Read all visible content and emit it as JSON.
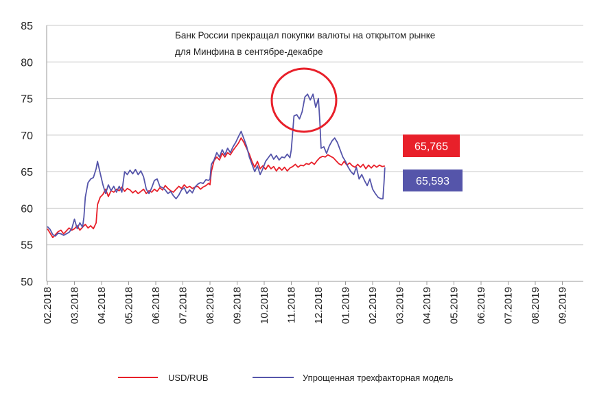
{
  "chart_data": {
    "type": "line",
    "title": "",
    "xlabel": "",
    "ylabel": "",
    "ylim": [
      50,
      85
    ],
    "yticks": [
      50,
      55,
      60,
      65,
      70,
      75,
      80,
      85
    ],
    "xtick_labels": [
      "02.2018",
      "03.2018",
      "04.2018",
      "05.2018",
      "06.2018",
      "07.2018",
      "08.2018",
      "09.2018",
      "10.2018",
      "11.2018",
      "12.2018",
      "01.2019",
      "02.2019",
      "03.2019",
      "04.2019",
      "05.2019",
      "06.2019",
      "07.2019",
      "08.2019",
      "09.2019"
    ],
    "x_unit": "months since 02.2018",
    "grid": "horizontal",
    "legend_position": "bottom",
    "annotation": {
      "line1": "Банк России прекращал покупки валюты на открытом рынке",
      "line2": "для Минфина в сентябре-декабре"
    },
    "end_labels": [
      {
        "text": "65,765",
        "series": "USD/RUB",
        "color": "#e8202a"
      },
      {
        "text": "65,593",
        "series": "Упрощенная трехфакторная модель",
        "color": "#5555aa"
      }
    ],
    "series": [
      {
        "name": "USD/RUB",
        "color": "#e8202a",
        "points": [
          [
            0,
            57.2
          ],
          [
            0.1,
            56.6
          ],
          [
            0.2,
            56.0
          ],
          [
            0.3,
            56.4
          ],
          [
            0.4,
            56.8
          ],
          [
            0.5,
            57.0
          ],
          [
            0.6,
            56.5
          ],
          [
            0.7,
            56.9
          ],
          [
            0.8,
            57.3
          ],
          [
            0.9,
            57.0
          ],
          [
            1.0,
            57.2
          ],
          [
            1.1,
            57.6
          ],
          [
            1.2,
            57.0
          ],
          [
            1.3,
            57.4
          ],
          [
            1.4,
            57.8
          ],
          [
            1.5,
            57.3
          ],
          [
            1.6,
            57.6
          ],
          [
            1.7,
            57.2
          ],
          [
            1.8,
            58.0
          ],
          [
            1.85,
            60.5
          ],
          [
            1.95,
            61.5
          ],
          [
            2.05,
            61.9
          ],
          [
            2.15,
            62.6
          ],
          [
            2.25,
            61.6
          ],
          [
            2.35,
            62.4
          ],
          [
            2.45,
            62.2
          ],
          [
            2.55,
            62.6
          ],
          [
            2.65,
            62.4
          ],
          [
            2.75,
            62.9
          ],
          [
            2.85,
            62.3
          ],
          [
            2.95,
            62.7
          ],
          [
            3.05,
            62.5
          ],
          [
            3.15,
            62.1
          ],
          [
            3.25,
            62.4
          ],
          [
            3.35,
            62.0
          ],
          [
            3.45,
            62.3
          ],
          [
            3.55,
            62.6
          ],
          [
            3.65,
            62.0
          ],
          [
            3.75,
            62.4
          ],
          [
            3.85,
            62.2
          ],
          [
            3.95,
            62.6
          ],
          [
            4.05,
            62.3
          ],
          [
            4.15,
            62.8
          ],
          [
            4.25,
            62.5
          ],
          [
            4.35,
            63.1
          ],
          [
            4.45,
            62.7
          ],
          [
            4.55,
            62.4
          ],
          [
            4.65,
            62.2
          ],
          [
            4.75,
            62.6
          ],
          [
            4.85,
            63.0
          ],
          [
            4.95,
            62.7
          ],
          [
            5.05,
            63.2
          ],
          [
            5.15,
            62.8
          ],
          [
            5.25,
            63.0
          ],
          [
            5.35,
            62.7
          ],
          [
            5.45,
            62.9
          ],
          [
            5.55,
            63.0
          ],
          [
            5.65,
            62.6
          ],
          [
            5.75,
            62.9
          ],
          [
            5.85,
            63.1
          ],
          [
            5.95,
            63.4
          ],
          [
            6.0,
            63.2
          ],
          [
            6.05,
            65.0
          ],
          [
            6.15,
            66.5
          ],
          [
            6.25,
            67.0
          ],
          [
            6.35,
            66.6
          ],
          [
            6.45,
            67.5
          ],
          [
            6.55,
            67.0
          ],
          [
            6.65,
            67.6
          ],
          [
            6.75,
            67.3
          ],
          [
            6.85,
            67.9
          ],
          [
            6.95,
            68.4
          ],
          [
            7.05,
            68.9
          ],
          [
            7.15,
            69.6
          ],
          [
            7.25,
            69.0
          ],
          [
            7.35,
            68.2
          ],
          [
            7.45,
            67.4
          ],
          [
            7.55,
            66.4
          ],
          [
            7.65,
            65.6
          ],
          [
            7.75,
            66.4
          ],
          [
            7.85,
            65.4
          ],
          [
            7.95,
            65.8
          ],
          [
            8.05,
            65.3
          ],
          [
            8.15,
            65.9
          ],
          [
            8.25,
            65.4
          ],
          [
            8.35,
            65.7
          ],
          [
            8.45,
            65.1
          ],
          [
            8.55,
            65.6
          ],
          [
            8.65,
            65.2
          ],
          [
            8.75,
            65.6
          ],
          [
            8.85,
            65.1
          ],
          [
            8.95,
            65.5
          ],
          [
            9.05,
            65.7
          ],
          [
            9.15,
            66.0
          ],
          [
            9.25,
            65.6
          ],
          [
            9.35,
            65.9
          ],
          [
            9.45,
            65.8
          ],
          [
            9.55,
            66.1
          ],
          [
            9.65,
            66.0
          ],
          [
            9.75,
            66.3
          ],
          [
            9.85,
            66.0
          ],
          [
            9.95,
            66.5
          ],
          [
            10.05,
            66.9
          ],
          [
            10.15,
            67.1
          ],
          [
            10.25,
            67.0
          ],
          [
            10.35,
            67.3
          ],
          [
            10.45,
            67.1
          ],
          [
            10.55,
            66.9
          ],
          [
            10.65,
            66.5
          ],
          [
            10.75,
            66.1
          ],
          [
            10.85,
            65.9
          ],
          [
            10.95,
            66.4
          ],
          [
            11.05,
            65.9
          ],
          [
            11.15,
            66.2
          ],
          [
            11.25,
            65.8
          ],
          [
            11.35,
            65.6
          ],
          [
            11.45,
            66.0
          ],
          [
            11.55,
            65.6
          ],
          [
            11.65,
            66.0
          ],
          [
            11.75,
            65.4
          ],
          [
            11.85,
            65.9
          ],
          [
            11.95,
            65.5
          ],
          [
            12.05,
            65.9
          ],
          [
            12.15,
            65.6
          ],
          [
            12.25,
            65.9
          ],
          [
            12.35,
            65.7
          ],
          [
            12.45,
            65.77
          ]
        ]
      },
      {
        "name": "Упрощенная трехфакторная модель",
        "color": "#5555aa",
        "points": [
          [
            0,
            57.5
          ],
          [
            0.1,
            57.1
          ],
          [
            0.2,
            56.4
          ],
          [
            0.3,
            56.2
          ],
          [
            0.4,
            56.6
          ],
          [
            0.5,
            56.5
          ],
          [
            0.6,
            56.3
          ],
          [
            0.7,
            56.5
          ],
          [
            0.8,
            56.7
          ],
          [
            0.9,
            57.2
          ],
          [
            1.0,
            58.5
          ],
          [
            1.1,
            57.2
          ],
          [
            1.2,
            58.0
          ],
          [
            1.3,
            57.4
          ],
          [
            1.35,
            58.8
          ],
          [
            1.4,
            61.5
          ],
          [
            1.5,
            63.5
          ],
          [
            1.6,
            64.0
          ],
          [
            1.7,
            64.2
          ],
          [
            1.8,
            65.4
          ],
          [
            1.85,
            66.4
          ],
          [
            1.95,
            64.8
          ],
          [
            2.05,
            63.2
          ],
          [
            2.15,
            62.0
          ],
          [
            2.25,
            63.2
          ],
          [
            2.35,
            62.4
          ],
          [
            2.45,
            63.0
          ],
          [
            2.55,
            62.2
          ],
          [
            2.65,
            63.0
          ],
          [
            2.75,
            62.2
          ],
          [
            2.85,
            65.0
          ],
          [
            2.95,
            64.6
          ],
          [
            3.05,
            65.2
          ],
          [
            3.15,
            64.7
          ],
          [
            3.25,
            65.3
          ],
          [
            3.35,
            64.6
          ],
          [
            3.45,
            65.1
          ],
          [
            3.55,
            64.3
          ],
          [
            3.65,
            62.6
          ],
          [
            3.75,
            62.0
          ],
          [
            3.85,
            62.8
          ],
          [
            3.95,
            63.8
          ],
          [
            4.05,
            64.0
          ],
          [
            4.15,
            63.0
          ],
          [
            4.25,
            62.8
          ],
          [
            4.35,
            62.5
          ],
          [
            4.45,
            62.0
          ],
          [
            4.55,
            62.3
          ],
          [
            4.65,
            61.7
          ],
          [
            4.75,
            61.3
          ],
          [
            4.85,
            61.8
          ],
          [
            4.95,
            62.5
          ],
          [
            5.05,
            62.8
          ],
          [
            5.15,
            62.0
          ],
          [
            5.25,
            62.5
          ],
          [
            5.35,
            62.1
          ],
          [
            5.45,
            62.9
          ],
          [
            5.55,
            63.3
          ],
          [
            5.65,
            63.5
          ],
          [
            5.75,
            63.4
          ],
          [
            5.85,
            63.9
          ],
          [
            5.95,
            63.8
          ],
          [
            6.0,
            64.0
          ],
          [
            6.05,
            66.0
          ],
          [
            6.15,
            66.6
          ],
          [
            6.25,
            67.6
          ],
          [
            6.35,
            67.0
          ],
          [
            6.45,
            68.0
          ],
          [
            6.55,
            67.3
          ],
          [
            6.65,
            68.2
          ],
          [
            6.75,
            67.6
          ],
          [
            6.85,
            68.4
          ],
          [
            6.95,
            69.0
          ],
          [
            7.05,
            69.8
          ],
          [
            7.15,
            70.5
          ],
          [
            7.25,
            69.5
          ],
          [
            7.35,
            68.5
          ],
          [
            7.45,
            67.0
          ],
          [
            7.55,
            66.0
          ],
          [
            7.65,
            65.0
          ],
          [
            7.75,
            65.8
          ],
          [
            7.85,
            64.6
          ],
          [
            7.95,
            65.4
          ],
          [
            8.05,
            66.4
          ],
          [
            8.15,
            66.9
          ],
          [
            8.25,
            67.4
          ],
          [
            8.35,
            66.7
          ],
          [
            8.45,
            67.2
          ],
          [
            8.55,
            66.6
          ],
          [
            8.65,
            67.0
          ],
          [
            8.75,
            66.9
          ],
          [
            8.85,
            67.4
          ],
          [
            8.95,
            66.9
          ],
          [
            9.0,
            68.0
          ],
          [
            9.1,
            72.6
          ],
          [
            9.2,
            72.8
          ],
          [
            9.3,
            72.2
          ],
          [
            9.4,
            73.2
          ],
          [
            9.5,
            75.2
          ],
          [
            9.6,
            75.6
          ],
          [
            9.7,
            74.8
          ],
          [
            9.8,
            75.6
          ],
          [
            9.9,
            73.8
          ],
          [
            10.0,
            75.0
          ],
          [
            10.05,
            72.0
          ],
          [
            10.1,
            68.2
          ],
          [
            10.2,
            68.4
          ],
          [
            10.3,
            67.5
          ],
          [
            10.4,
            68.5
          ],
          [
            10.5,
            69.2
          ],
          [
            10.6,
            69.6
          ],
          [
            10.7,
            69.0
          ],
          [
            10.8,
            68.0
          ],
          [
            10.9,
            67.0
          ],
          [
            11.0,
            66.4
          ],
          [
            11.1,
            65.6
          ],
          [
            11.2,
            65.0
          ],
          [
            11.3,
            64.6
          ],
          [
            11.4,
            65.6
          ],
          [
            11.5,
            64.0
          ],
          [
            11.6,
            64.6
          ],
          [
            11.7,
            63.8
          ],
          [
            11.8,
            63.1
          ],
          [
            11.9,
            64.0
          ],
          [
            12.0,
            62.6
          ],
          [
            12.1,
            62.0
          ],
          [
            12.2,
            61.5
          ],
          [
            12.3,
            61.3
          ],
          [
            12.38,
            61.3
          ],
          [
            12.42,
            63.5
          ],
          [
            12.45,
            65.59
          ]
        ]
      }
    ]
  }
}
